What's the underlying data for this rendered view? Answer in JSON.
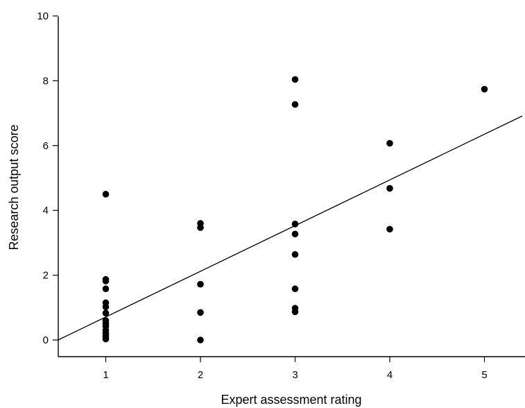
{
  "chart_data": {
    "type": "scatter",
    "xlabel": "Expert assessment rating",
    "ylabel": "Research output score",
    "xlim": [
      0.5,
      5.4
    ],
    "ylim": [
      -0.5,
      10
    ],
    "xticks": [
      1,
      2,
      3,
      4,
      5
    ],
    "yticks": [
      0,
      2,
      4,
      6,
      8,
      10
    ],
    "grid": false,
    "series": [
      {
        "points": [
          {
            "x": 1,
            "y": 4.5
          },
          {
            "x": 1,
            "y": 1.87
          },
          {
            "x": 1,
            "y": 1.82
          },
          {
            "x": 1,
            "y": 1.58
          },
          {
            "x": 1,
            "y": 1.15
          },
          {
            "x": 1,
            "y": 1.02
          },
          {
            "x": 1,
            "y": 0.83
          },
          {
            "x": 1,
            "y": 0.6
          },
          {
            "x": 1,
            "y": 0.5
          },
          {
            "x": 1,
            "y": 0.42
          },
          {
            "x": 1,
            "y": 0.3
          },
          {
            "x": 1,
            "y": 0.2
          },
          {
            "x": 1,
            "y": 0.12
          },
          {
            "x": 1,
            "y": 0.03
          },
          {
            "x": 2,
            "y": 3.6
          },
          {
            "x": 2,
            "y": 3.47
          },
          {
            "x": 2,
            "y": 1.72
          },
          {
            "x": 2,
            "y": 0.85
          },
          {
            "x": 2,
            "y": 0.0
          },
          {
            "x": 3,
            "y": 8.04
          },
          {
            "x": 3,
            "y": 7.27
          },
          {
            "x": 3,
            "y": 3.58
          },
          {
            "x": 3,
            "y": 3.27
          },
          {
            "x": 3,
            "y": 2.64
          },
          {
            "x": 3,
            "y": 1.58
          },
          {
            "x": 3,
            "y": 0.98
          },
          {
            "x": 3,
            "y": 0.87
          },
          {
            "x": 4,
            "y": 6.07
          },
          {
            "x": 4,
            "y": 4.68
          },
          {
            "x": 4,
            "y": 3.42
          },
          {
            "x": 5,
            "y": 7.74
          }
        ]
      }
    ],
    "trendline": {
      "type": "linear",
      "slope": 1.41,
      "intercept": -0.7,
      "color": "#000000"
    }
  }
}
